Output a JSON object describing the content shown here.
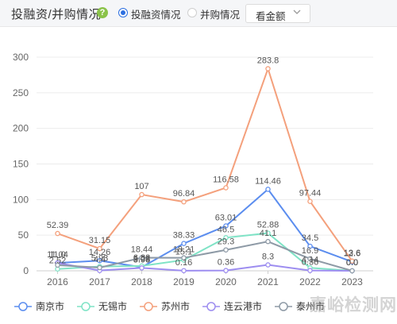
{
  "header": {
    "title": "投融资/并购情况",
    "radios": [
      {
        "label": "投融资情况",
        "checked": true
      },
      {
        "label": "并购情况",
        "checked": false
      }
    ],
    "select_value": "看金额"
  },
  "watermark": "嘉峪检测网",
  "colors": {
    "南京市": "#5b8def",
    "无锡市": "#7fe3c6",
    "苏州市": "#f4a07c",
    "连云港市": "#9d8df0",
    "泰州市": "#8e9aa6"
  },
  "chart_data": {
    "type": "line",
    "categories": [
      "2016",
      "2017",
      "2018",
      "2019",
      "2020",
      "2021",
      "2022",
      "2023"
    ],
    "ylim": [
      0,
      300
    ],
    "yticks": [
      0,
      50,
      100,
      150,
      200,
      250,
      300
    ],
    "grid": true,
    "legend": "bottom",
    "series": [
      {
        "name": "南京市",
        "values": [
          11.04,
          14.26,
          5.08,
          38.33,
          63.01,
          114.46,
          34.5,
          12.6
        ]
      },
      {
        "name": "无锡市",
        "values": [
          2.52,
          5.93,
          6.82,
          15.1,
          46.5,
          52.88,
          4.14,
          0.0
        ]
      },
      {
        "name": "苏州市",
        "values": [
          52.39,
          31.15,
          107,
          96.84,
          116.58,
          283.8,
          97.44,
          13.6
        ]
      },
      {
        "name": "连云港市",
        "values": [
          11.0,
          0.4,
          3.98,
          0.16,
          0.36,
          8.3,
          0.36,
          0.0
        ]
      },
      {
        "name": "泰州市",
        "values": [
          8.0,
          4.4,
          18.44,
          18.21,
          29.3,
          41.1,
          16.9,
          0.0
        ]
      }
    ],
    "data_labels": [
      {
        "series": 0,
        "index": 0,
        "text": "11.04"
      },
      {
        "series": 0,
        "index": 1,
        "text": "14.26"
      },
      {
        "series": 0,
        "index": 2,
        "text": "5.08"
      },
      {
        "series": 0,
        "index": 3,
        "text": "38.33"
      },
      {
        "series": 0,
        "index": 4,
        "text": "63.01"
      },
      {
        "series": 0,
        "index": 5,
        "text": "114.46"
      },
      {
        "series": 0,
        "index": 6,
        "text": "34.5"
      },
      {
        "series": 0,
        "index": 7,
        "text": "12.6"
      },
      {
        "series": 1,
        "index": 0,
        "text": "2.52"
      },
      {
        "series": 1,
        "index": 1,
        "text": "5.93"
      },
      {
        "series": 1,
        "index": 2,
        "text": "6.82"
      },
      {
        "series": 1,
        "index": 3,
        "text": "15.1"
      },
      {
        "series": 1,
        "index": 4,
        "text": "46.5"
      },
      {
        "series": 1,
        "index": 5,
        "text": "52.88"
      },
      {
        "series": 1,
        "index": 6,
        "text": "4.14"
      },
      {
        "series": 1,
        "index": 7,
        "text": "0.0"
      },
      {
        "series": 2,
        "index": 0,
        "text": "52.39"
      },
      {
        "series": 2,
        "index": 1,
        "text": "31.15"
      },
      {
        "series": 2,
        "index": 2,
        "text": "107"
      },
      {
        "series": 2,
        "index": 3,
        "text": "96.84"
      },
      {
        "series": 2,
        "index": 4,
        "text": "116.58"
      },
      {
        "series": 2,
        "index": 5,
        "text": "283.8"
      },
      {
        "series": 2,
        "index": 6,
        "text": "97.44"
      },
      {
        "series": 2,
        "index": 7,
        "text": "13.6"
      },
      {
        "series": 3,
        "index": 0,
        "text": "11.0"
      },
      {
        "series": 3,
        "index": 2,
        "text": "3.98"
      },
      {
        "series": 3,
        "index": 3,
        "text": "0.16"
      },
      {
        "series": 3,
        "index": 4,
        "text": "0.36"
      },
      {
        "series": 3,
        "index": 5,
        "text": "8.3"
      },
      {
        "series": 3,
        "index": 6,
        "text": "0.36"
      },
      {
        "series": 3,
        "index": 7,
        "text": "0.0"
      },
      {
        "series": 4,
        "index": 1,
        "text": "4.4"
      },
      {
        "series": 4,
        "index": 2,
        "text": "18.44"
      },
      {
        "series": 4,
        "index": 3,
        "text": "18.21"
      },
      {
        "series": 4,
        "index": 4,
        "text": "29.3"
      },
      {
        "series": 4,
        "index": 5,
        "text": "41.1"
      },
      {
        "series": 4,
        "index": 6,
        "text": "16.9"
      },
      {
        "series": 4,
        "index": 7,
        "text": "0.0"
      }
    ]
  }
}
